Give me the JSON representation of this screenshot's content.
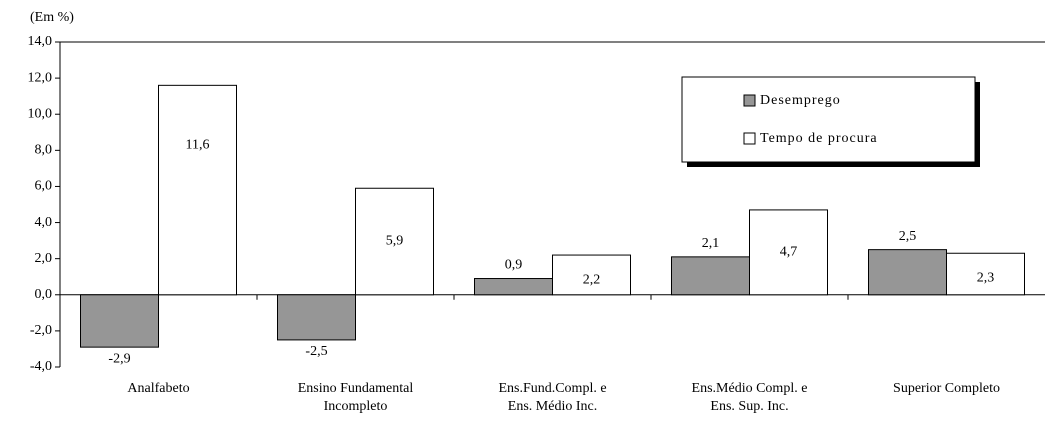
{
  "chart_data": {
    "type": "bar",
    "y_label": "(Em %)",
    "categories": [
      [
        "Analfabeto"
      ],
      [
        "Ensino Fundamental",
        "Incompleto"
      ],
      [
        "Ens.Fund.Compl. e",
        "Ens. Médio Inc."
      ],
      [
        "Ens.Médio Compl. e",
        "Ens. Sup. Inc."
      ],
      [
        "Superior Completo"
      ]
    ],
    "series": [
      {
        "name": "Desemprego",
        "color": "#969696",
        "values": [
          -2.9,
          -2.5,
          0.9,
          2.1,
          2.5
        ],
        "value_labels": [
          "-2,9",
          "-2,5",
          "0,9",
          "2,1",
          "2,5"
        ]
      },
      {
        "name": "Tempo de procura",
        "color": "#ffffff",
        "values": [
          11.6,
          5.9,
          2.2,
          4.7,
          2.3
        ],
        "value_labels": [
          "11,6",
          "5,9",
          "2,2",
          "4,7",
          "2,3"
        ]
      }
    ],
    "ylim": [
      -4,
      14
    ],
    "yticks": [
      {
        "value": -4,
        "label": "-4,0"
      },
      {
        "value": -2,
        "label": "-2,0"
      },
      {
        "value": 0,
        "label": "0,0"
      },
      {
        "value": 2,
        "label": "2,0"
      },
      {
        "value": 4,
        "label": "4,0"
      },
      {
        "value": 6,
        "label": "6,0"
      },
      {
        "value": 8,
        "label": "8,0"
      },
      {
        "value": 10,
        "label": "10,0"
      },
      {
        "value": 12,
        "label": "12,0"
      },
      {
        "value": 14,
        "label": "14,0"
      }
    ],
    "grid": false,
    "legend": "upper right"
  }
}
